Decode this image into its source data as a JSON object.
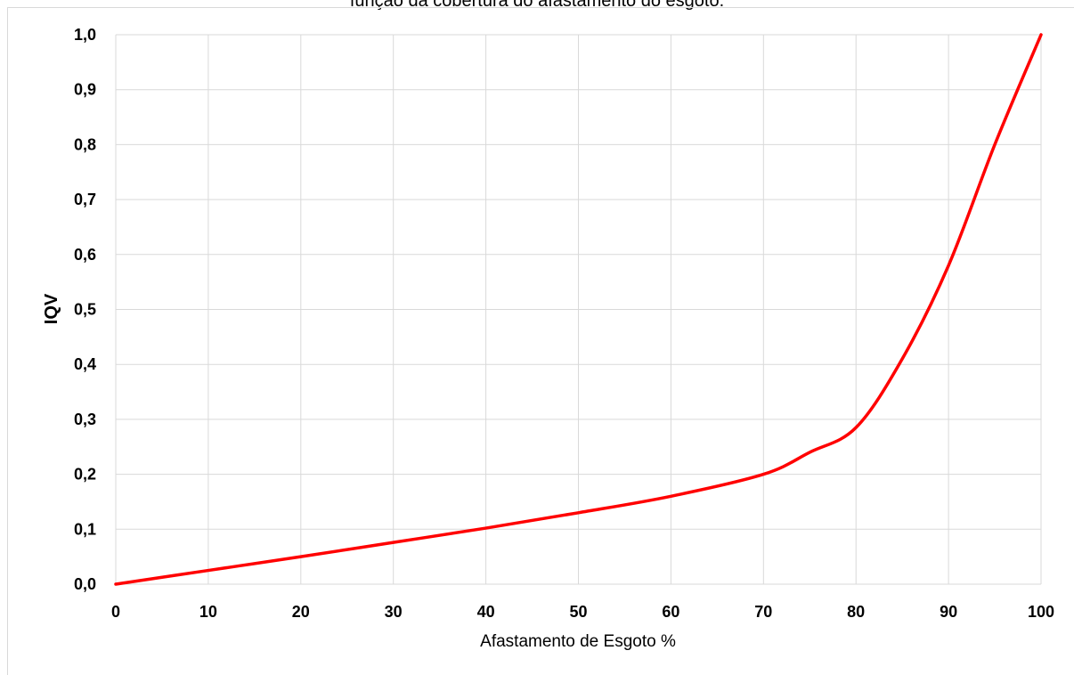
{
  "caption": "função da cobertura do afastamento do esgoto.",
  "chart_data": {
    "type": "line",
    "title": "",
    "xlabel": "Afastamento de Esgoto %",
    "ylabel": "IQV",
    "xlim": [
      0,
      100
    ],
    "ylim": [
      0,
      1
    ],
    "x_ticks": [
      "0",
      "10",
      "20",
      "30",
      "40",
      "50",
      "60",
      "70",
      "80",
      "90",
      "100"
    ],
    "y_ticks": [
      "0,0",
      "0,1",
      "0,2",
      "0,3",
      "0,4",
      "0,5",
      "0,6",
      "0,7",
      "0,8",
      "0,9",
      "1,0"
    ],
    "grid": true,
    "legend": "none",
    "series": [
      {
        "color": "#ff0000",
        "x": [
          0,
          10,
          20,
          30,
          40,
          50,
          60,
          70,
          75,
          80,
          85,
          90,
          95,
          100
        ],
        "y": [
          0.0,
          0.025,
          0.05,
          0.076,
          0.102,
          0.13,
          0.16,
          0.2,
          0.24,
          0.285,
          0.41,
          0.58,
          0.8,
          1.0
        ]
      }
    ]
  }
}
